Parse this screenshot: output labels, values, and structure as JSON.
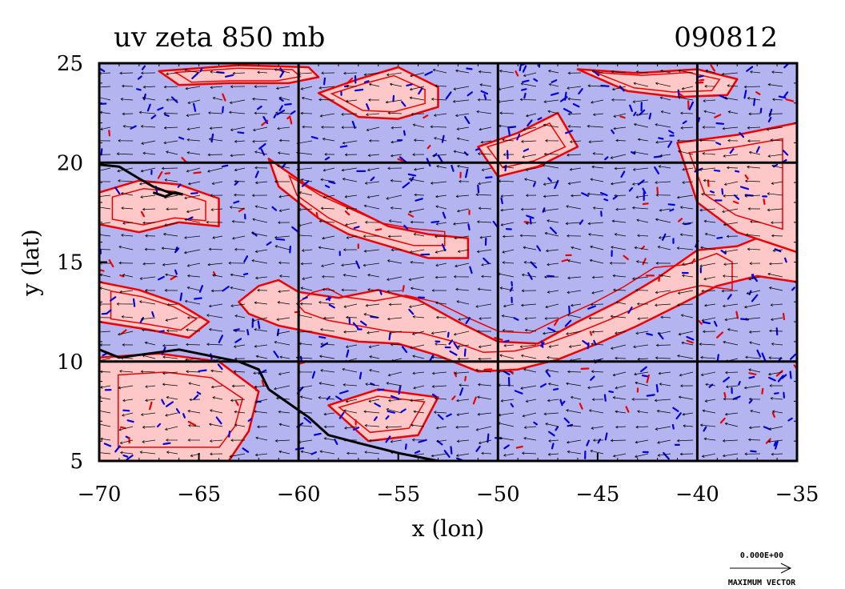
{
  "chart_data": {
    "type": "heatmap",
    "title": "uv zeta 850 mb",
    "date": "090812",
    "xlabel": "x (lon)",
    "ylabel": "y (lat)",
    "xlim": [
      -70,
      -35
    ],
    "ylim": [
      5,
      25
    ],
    "xticks": [
      -70,
      -65,
      -60,
      -55,
      -50,
      -45,
      -40,
      -35
    ],
    "yticks": [
      5,
      10,
      15,
      20,
      25
    ],
    "xtick_labels": [
      "−70",
      "−65",
      "−60",
      "−55",
      "−50",
      "−45",
      "−40",
      "−35"
    ],
    "ytick_labels": [
      "5",
      "10",
      "15",
      "20",
      "25"
    ],
    "grid_lon": [
      -60,
      -50,
      -40
    ],
    "grid_lat": [
      10,
      20
    ],
    "colors": {
      "positive_fill": "#ffc8c8",
      "negative_fill": "#b4b4f0",
      "positive_contour": "#ee0000",
      "negative_contour": "#0000dd",
      "coastline": "#000000",
      "vectors": "#000000"
    },
    "positive_regions": [
      {
        "lon": [
          -63.0,
          -62.0,
          -61.0,
          -60.0,
          -58.0,
          -56.0,
          -54.0,
          -52.0,
          -50.0,
          -48.0,
          -46.0,
          -44.0,
          -42.0,
          -40.0,
          -38.0,
          -36.0,
          -35.0,
          -35.0,
          -37.0,
          -39.0,
          -41.0,
          -43.0,
          -45.0,
          -47.0,
          -49.0,
          -51.0,
          -53.0,
          -55.0,
          -57.0,
          -59.0,
          -61.0,
          -62.5,
          -63.0
        ],
        "lat": [
          13.0,
          13.8,
          14.1,
          13.5,
          13.2,
          13.6,
          13.1,
          12.0,
          11.0,
          10.9,
          12.0,
          13.0,
          14.2,
          15.6,
          15.8,
          16.6,
          16.0,
          14.0,
          14.3,
          13.8,
          12.8,
          11.8,
          10.9,
          10.1,
          9.6,
          9.5,
          10.3,
          10.9,
          11.0,
          11.4,
          11.8,
          12.4,
          13.0
        ]
      },
      {
        "lon": [
          -61.5,
          -59.5,
          -57.5,
          -55.5,
          -53.5,
          -51.5,
          -51.5,
          -53.5,
          -55.5,
          -57.5,
          -59.0,
          -61.0,
          -61.5
        ],
        "lat": [
          20.2,
          18.8,
          17.8,
          16.8,
          16.4,
          16.2,
          15.2,
          15.2,
          15.8,
          16.4,
          17.2,
          18.8,
          20.2
        ]
      },
      {
        "lon": [
          -41.0,
          -38.0,
          -35.0,
          -35.0,
          -38.0,
          -40.0,
          -41.0
        ],
        "lat": [
          21.0,
          21.4,
          22.0,
          15.5,
          16.5,
          18.0,
          21.0
        ]
      },
      {
        "lon": [
          -51.0,
          -49.0,
          -47.0,
          -46.0,
          -48.0,
          -50.0,
          -51.0
        ],
        "lat": [
          20.8,
          21.5,
          22.5,
          20.8,
          19.8,
          19.3,
          20.8
        ]
      },
      {
        "lon": [
          -59.0,
          -57.0,
          -55.0,
          -53.0,
          -53.0,
          -55.0,
          -57.0,
          -59.0
        ],
        "lat": [
          23.5,
          24.2,
          24.8,
          23.8,
          22.8,
          22.2,
          22.3,
          23.5
        ]
      },
      {
        "lon": [
          -70.0,
          -68.0,
          -66.0,
          -64.5,
          -65.5,
          -67.5,
          -70.0
        ],
        "lat": [
          14.0,
          13.6,
          12.9,
          12.0,
          11.2,
          11.6,
          12.0
        ]
      },
      {
        "lon": [
          -70.0,
          -68.0,
          -66.0,
          -64.0,
          -64.0,
          -66.0,
          -68.0,
          -70.0
        ],
        "lat": [
          18.5,
          19.1,
          18.9,
          18.2,
          16.8,
          17.0,
          16.5,
          16.9
        ]
      },
      {
        "lon": [
          -70.0,
          -67.0,
          -64.0,
          -62.0,
          -62.5,
          -63.5,
          -65.0,
          -67.0,
          -70.0
        ],
        "lat": [
          10.2,
          10.4,
          10.0,
          8.5,
          6.5,
          5.0,
          5.0,
          5.0,
          5.0
        ]
      },
      {
        "lon": [
          -58.5,
          -56.0,
          -53.0,
          -54.0,
          -56.5,
          -58.5
        ],
        "lat": [
          7.8,
          8.6,
          8.2,
          6.3,
          6.0,
          7.8
        ]
      },
      {
        "lon": [
          -67.0,
          -63.0,
          -59.5,
          -59.0,
          -60.5,
          -63.5,
          -66.0,
          -67.0
        ],
        "lat": [
          24.6,
          24.9,
          24.8,
          24.3,
          24.0,
          24.0,
          23.9,
          24.6
        ]
      },
      {
        "lon": [
          -46.0,
          -43.0,
          -40.0,
          -38.0,
          -38.5,
          -41.0,
          -43.5,
          -46.0
        ],
        "lat": [
          24.7,
          24.5,
          24.7,
          24.2,
          23.4,
          23.3,
          23.6,
          24.7
        ]
      }
    ],
    "coastlines": [
      {
        "lon": [
          -70.0,
          -69.0,
          -67.5,
          -66.0,
          -64.5,
          -63.0,
          -62.0,
          -61.5
        ],
        "lat": [
          10.6,
          10.2,
          10.4,
          10.6,
          10.3,
          10.0,
          9.6,
          8.6
        ]
      },
      {
        "lon": [
          -61.5,
          -60.5,
          -59.5,
          -58.5,
          -57.0,
          -55.0,
          -53.0
        ],
        "lat": [
          8.6,
          7.9,
          7.2,
          6.3,
          5.9,
          5.4,
          5.0
        ]
      },
      {
        "lon": [
          -70.0,
          -69.0,
          -68.0,
          -67.3,
          -66.5,
          -65.8
        ],
        "lat": [
          19.9,
          19.8,
          19.2,
          18.8,
          18.5,
          18.4
        ]
      },
      {
        "lon": [
          -67.3,
          -66.7,
          -66.2,
          -65.8
        ],
        "lat": [
          18.5,
          18.3,
          18.5,
          18.4
        ]
      }
    ],
    "vector_units": "",
    "max_vector_label": "0.000E+00",
    "max_vector_caption": "MAXIMUM VECTOR"
  }
}
